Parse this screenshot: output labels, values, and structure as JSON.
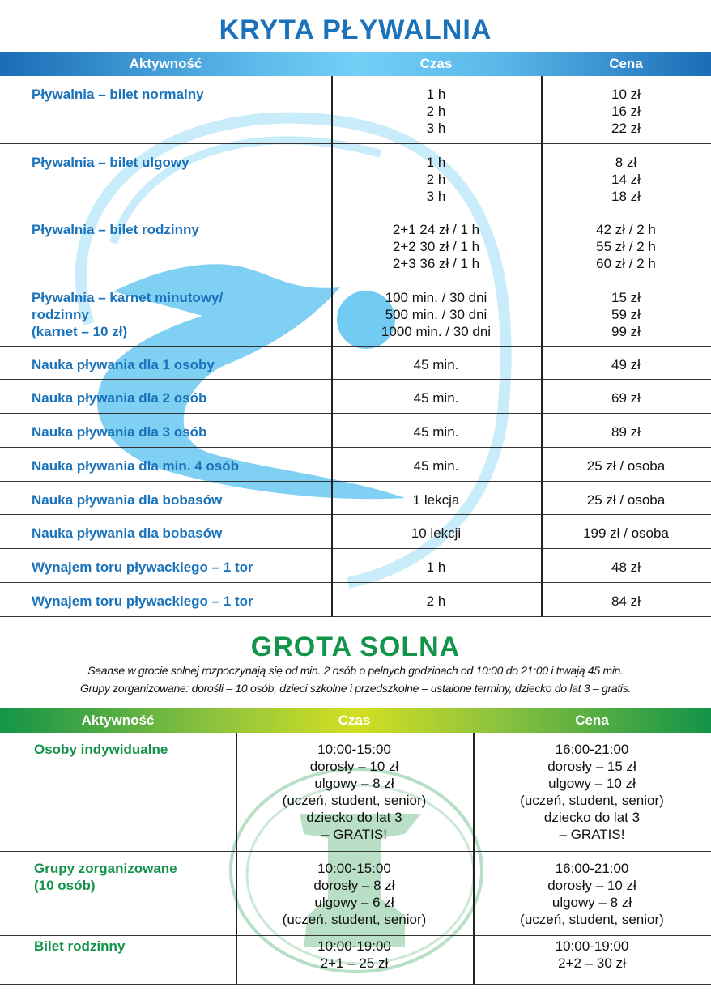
{
  "pool": {
    "title": "KRYTA PŁYWALNIA",
    "headers": [
      "Aktywność",
      "Czas",
      "Cena"
    ],
    "rows": [
      {
        "activity": "Pływalnia – bilet normalny",
        "time": "1 h\n2 h\n3 h",
        "price": "10 zł\n16 zł\n22 zł"
      },
      {
        "activity": "Pływalnia – bilet ulgowy",
        "time": "1 h\n2 h\n3 h",
        "price": "8 zł\n14 zł\n18 zł"
      },
      {
        "activity": "Pływalnia – bilet rodzinny",
        "time": "2+1   24 zł / 1 h\n2+2   30 zł / 1 h\n2+3   36 zł / 1 h",
        "price": "42 zł / 2 h\n55 zł / 2 h\n60 zł / 2 h"
      },
      {
        "activity": "Pływalnia – karnet minutowy/\nrodzinny\n(karnet – 10 zł)",
        "time": "100 min. / 30 dni\n500 min. / 30 dni\n1000 min. / 30 dni",
        "price": "15 zł\n59 zł\n99 zł"
      },
      {
        "activity": "Nauka pływania dla 1 osoby",
        "time": "45 min.",
        "price": "49 zł"
      },
      {
        "activity": "Nauka pływania dla 2 osób",
        "time": "45 min.",
        "price": "69 zł"
      },
      {
        "activity": "Nauka pływania dla 3 osób",
        "time": "45 min.",
        "price": "89 zł"
      },
      {
        "activity": "Nauka pływania dla min. 4 osób",
        "time": "45 min.",
        "price": "25 zł / osoba"
      },
      {
        "activity": "Nauka pływania dla bobasów",
        "time": "1 lekcja",
        "price": "25 zł / osoba"
      },
      {
        "activity": "Nauka pływania dla bobasów",
        "time": "10 lekcji",
        "price": "199 zł / osoba"
      },
      {
        "activity": "Wynajem toru pływackiego  – 1 tor",
        "time": "1 h",
        "price": "48 zł"
      },
      {
        "activity": "Wynajem toru pływackiego  – 1 tor",
        "time": "2 h",
        "price": "84 zł"
      }
    ]
  },
  "salt": {
    "title": "GROTA SOLNA",
    "notes": [
      "Seanse w grocie solnej rozpoczynają się od min. 2 osób o pełnych godzinach od 10:00 do 21:00 i trwają 45 min.",
      "Grupy zorganizowane: dorośli – 10 osób, dzieci szkolne i przedszkolne – ustalone terminy, dziecko do lat 3 – gratis."
    ],
    "headers": [
      "Aktywność",
      "Czas",
      "Cena"
    ],
    "rows": [
      {
        "activity": "Osoby indywidualne",
        "time": "10:00-15:00\ndorosły – 10 zł\nulgowy – 8 zł\n(uczeń, student, senior)\ndziecko do lat 3\n– GRATIS!",
        "price": "16:00-21:00\ndorosły – 15 zł\nulgowy – 10 zł\n(uczeń, student, senior)\ndziecko do lat 3\n– GRATIS!"
      },
      {
        "activity": "Grupy zorganizowane\n(10 osób)",
        "time": "10:00-15:00\ndorosły – 8 zł\nulgowy – 6 zł\n(uczeń, student, senior)",
        "price": "16:00-21:00\ndorosły – 10 zł\nulgowy – 8 zł\n(uczeń, student, senior)"
      },
      {
        "activity": "Bilet rodzinny",
        "time": "10:00-19:00\n2+1 – 25 zł",
        "price": "10:00-19:00\n2+2 – 30 zł"
      }
    ]
  },
  "colors": {
    "pool": "#1a72ba",
    "salt": "#12944a"
  }
}
